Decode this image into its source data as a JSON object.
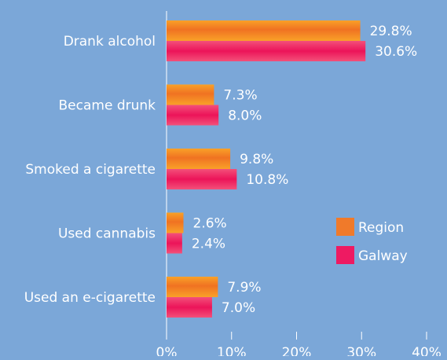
{
  "chart_data": {
    "type": "bar",
    "orientation": "horizontal",
    "categories": [
      "Drank alcohol",
      "Became drunk",
      "Smoked a cigarette",
      "Used cannabis",
      "Used an e-cigarette"
    ],
    "series": [
      {
        "name": "Region",
        "values": [
          29.8,
          7.3,
          9.8,
          2.6,
          7.9
        ],
        "labels": [
          "29.8%",
          "7.3%",
          "9.8%",
          "2.6%",
          "7.9%"
        ],
        "color": "#f07a2a"
      },
      {
        "name": "Galway",
        "values": [
          30.6,
          8.0,
          10.8,
          2.4,
          7.0
        ],
        "labels": [
          "30.6%",
          "8.0%",
          "10.8%",
          "2.4%",
          "7.0%"
        ],
        "color": "#ee1a62"
      }
    ],
    "xlim": [
      0,
      40
    ],
    "x_ticks": [
      "0%",
      "10%",
      "20%",
      "30%",
      "40%"
    ],
    "grid": false,
    "legend_position": "right"
  },
  "colors": {
    "background": "#7ba7d8",
    "region": "#f07a2a",
    "galway": "#ee1a62"
  }
}
